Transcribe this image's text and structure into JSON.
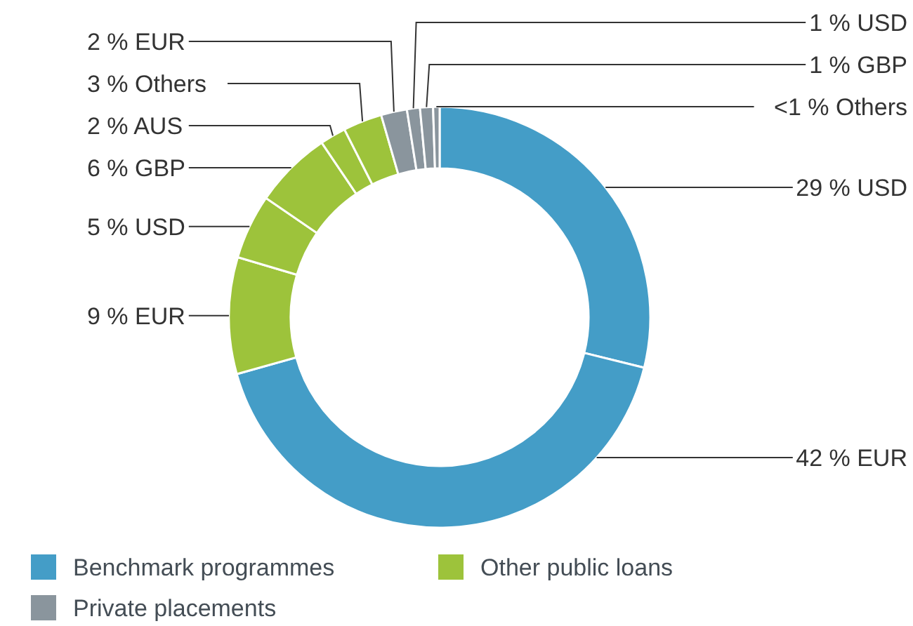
{
  "chart_data": {
    "type": "donut",
    "categories": [
      "USD",
      "EUR",
      "EUR",
      "USD",
      "GBP",
      "AUS",
      "Others",
      "EUR",
      "USD",
      "GBP",
      "Others"
    ],
    "values": [
      29,
      42,
      9,
      5,
      6,
      2,
      3,
      2,
      1,
      1,
      0.5
    ],
    "value_labels": [
      "29 %",
      "42 %",
      "9 %",
      "5 %",
      "6 %",
      "2 %",
      "3 %",
      "2 %",
      "1 %",
      "1 %",
      "<1 %"
    ],
    "colors": [
      "#449dc7",
      "#449dc7",
      "#9dc33b",
      "#9dc33b",
      "#9dc33b",
      "#9dc33b",
      "#9dc33b",
      "#8a959d",
      "#8a959d",
      "#8a959d",
      "#8a959d"
    ],
    "annotations": [
      "Benchmark programmes",
      "Other public loans",
      "Private placements"
    ]
  }
}
